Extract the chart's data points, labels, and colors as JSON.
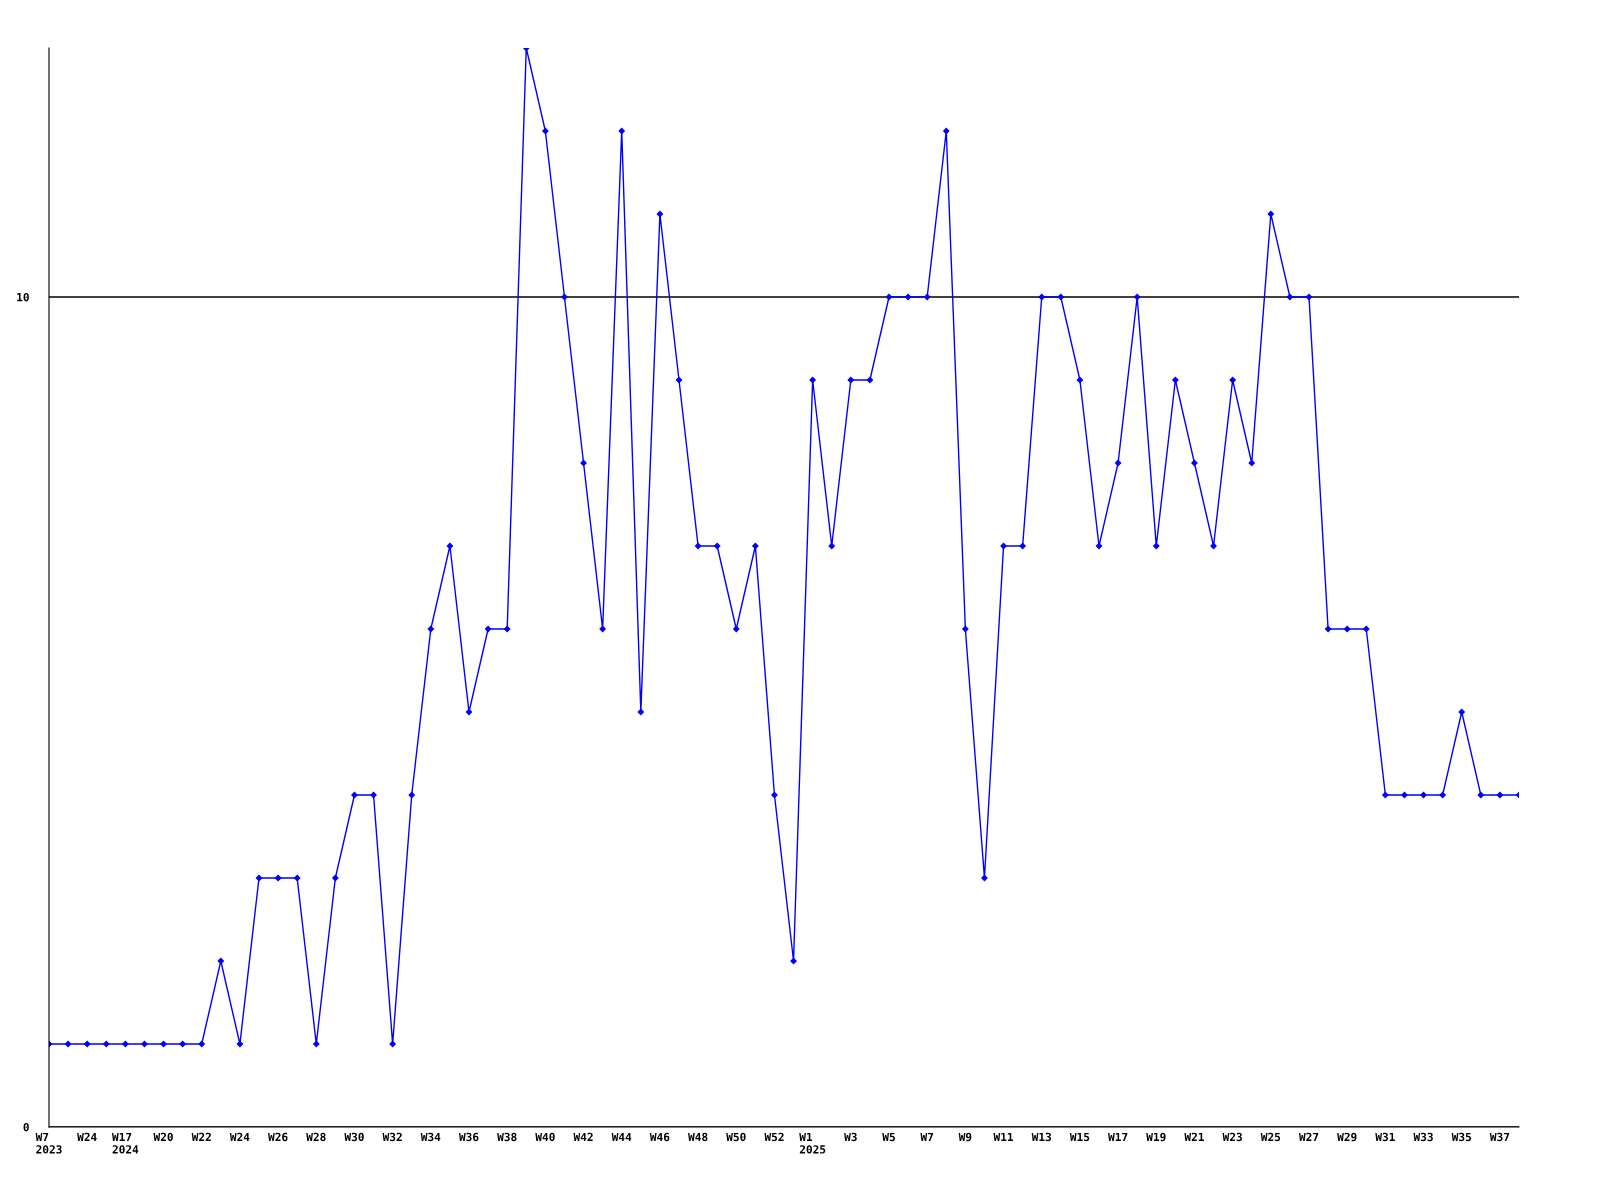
{
  "chart_data": {
    "type": "line",
    "categories": [
      "W7\n2023",
      null,
      "W24",
      null,
      "W17\n2024",
      null,
      "W20",
      null,
      "W22",
      null,
      "W24",
      null,
      "W26",
      null,
      "W28",
      null,
      "W30",
      null,
      "W32",
      null,
      "W34",
      null,
      "W36",
      null,
      "W38",
      null,
      "W40",
      null,
      "W42",
      null,
      "W44",
      null,
      "W46",
      null,
      "W48",
      null,
      "W50",
      null,
      "W52",
      null,
      "W1\n2025",
      null,
      "W3",
      null,
      "W5",
      null,
      "W7",
      null,
      "W9",
      null,
      "W11",
      null,
      "W13",
      null,
      "W15",
      null,
      "W17",
      null,
      "W19",
      null,
      "W21",
      null,
      "W23",
      null,
      "W25",
      null,
      "W27",
      null,
      "W29",
      null,
      "W31",
      null,
      "W33",
      null,
      "W35",
      null,
      "W37",
      null
    ],
    "series": [
      {
        "color": "#0000ff",
        "values": [
          1,
          1,
          1,
          1,
          1,
          1,
          1,
          1,
          1,
          2,
          1,
          3,
          3,
          3,
          1,
          3,
          4,
          4,
          1,
          4,
          6,
          7,
          5,
          6,
          6,
          13,
          12,
          10,
          8,
          6,
          12,
          5,
          11,
          9,
          7,
          7,
          6,
          7,
          4,
          2,
          9,
          7,
          9,
          9,
          10,
          10,
          10,
          12,
          6,
          3,
          7,
          7,
          10,
          10,
          9,
          7,
          8,
          10,
          7,
          9,
          8,
          7,
          9,
          8,
          11,
          10,
          10,
          6,
          6,
          6,
          4,
          4,
          4,
          4,
          5,
          4,
          4,
          4
        ]
      }
    ],
    "ylim": [
      0,
      13
    ],
    "yticks": [
      0,
      10
    ],
    "grid": "y",
    "marker": "diamond",
    "line_style": "solid",
    "legend": false
  }
}
